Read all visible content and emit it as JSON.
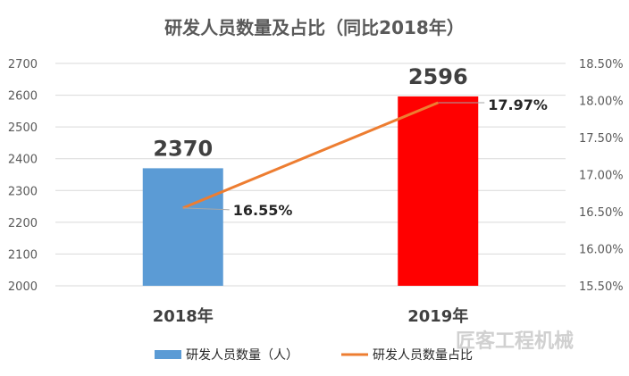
{
  "chart_data": {
    "type": "bar",
    "title": "研发人员数量及占比（同比2018年）",
    "categories": [
      "2018年",
      "2019年"
    ],
    "series": [
      {
        "name": "研发人员数量（人）",
        "type": "bar",
        "values": [
          2370,
          2596
        ],
        "labels": [
          "2370",
          "2596"
        ],
        "colors": [
          "#5b9bd5",
          "#ff0000"
        ]
      },
      {
        "name": "研发人员数量占比",
        "type": "line",
        "values": [
          16.55,
          17.97
        ],
        "labels": [
          "16.55%",
          "17.97%"
        ],
        "color": "#ed7d31"
      }
    ],
    "y_left": {
      "range": [
        2000,
        2700
      ],
      "ticks": [
        "2000",
        "2100",
        "2200",
        "2300",
        "2400",
        "2500",
        "2600",
        "2700"
      ]
    },
    "y_right": {
      "range": [
        15.5,
        18.5
      ],
      "ticks": [
        "15.50%",
        "16.00%",
        "16.50%",
        "17.00%",
        "17.50%",
        "18.00%",
        "18.50%"
      ]
    },
    "legend": "bottom",
    "grid": true
  },
  "watermark": "匠客工程机械"
}
